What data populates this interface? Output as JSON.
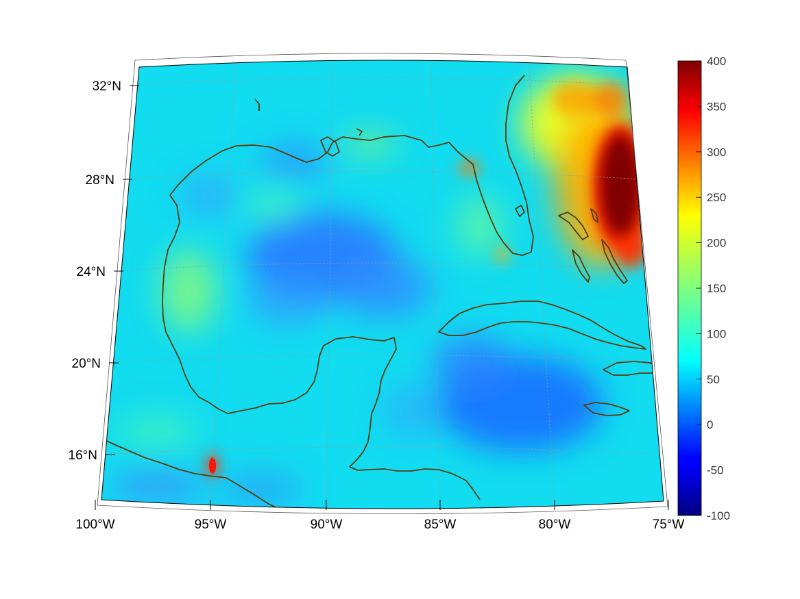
{
  "map": {
    "projection": "conic",
    "extent_lon": [
      -100,
      -75
    ],
    "extent_lat": [
      14,
      33
    ],
    "lat_ticks": [
      {
        "value": 32,
        "label": "32°N"
      },
      {
        "value": 28,
        "label": "28°N"
      },
      {
        "value": 24,
        "label": "24°N"
      },
      {
        "value": 20,
        "label": "20°N"
      },
      {
        "value": 16,
        "label": "16°N"
      }
    ],
    "lon_ticks": [
      {
        "value": -100,
        "label": "100°W"
      },
      {
        "value": -95,
        "label": "95°W"
      },
      {
        "value": -90,
        "label": "90°W"
      },
      {
        "value": -85,
        "label": "85°W"
      },
      {
        "value": -80,
        "label": "80°W"
      },
      {
        "value": -75,
        "label": "75°W"
      }
    ],
    "coastline_color": "#5a3a0a",
    "grid": true
  },
  "colorbar": {
    "colormap": "jet",
    "range": [
      -100,
      400
    ],
    "ticks": [
      "400",
      "350",
      "300",
      "250",
      "200",
      "150",
      "100",
      "50",
      "0",
      "-50",
      "-100"
    ]
  }
}
